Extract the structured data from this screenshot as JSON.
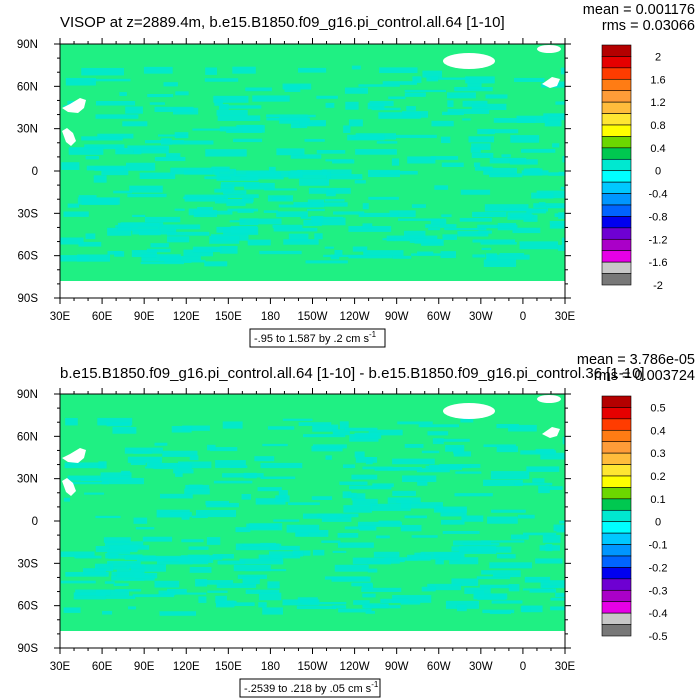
{
  "colors": {
    "ocean": "#1ff083",
    "anomaly": "#00e8d0",
    "land": "#ffffff",
    "frame": "#000000"
  },
  "chart_data": [
    {
      "type": "heatmap",
      "title": "VISOP at z=2889.4m, b.e15.B1850.f09_g16.pi_control.all.64 [1-10]",
      "stats": {
        "mean": "mean = 0.001176",
        "rms": "rms = 0.03066"
      },
      "x_ticks": [
        "30E",
        "60E",
        "90E",
        "120E",
        "150E",
        "180",
        "150W",
        "120W",
        "90W",
        "60W",
        "30W",
        "0",
        "30E"
      ],
      "y_ticks": [
        "90N",
        "60N",
        "30N",
        "0",
        "30S",
        "60S",
        "90S"
      ],
      "xlim": [
        30,
        390
      ],
      "ylim": [
        -90,
        90
      ],
      "colorbar": {
        "levels": [
          "2",
          "1.6",
          "1.2",
          "0.8",
          "0.4",
          "0",
          "-0.4",
          "-0.8",
          "-1.2",
          "-1.6",
          "-2"
        ],
        "colors": [
          "#b40000",
          "#e60000",
          "#ff3c00",
          "#ff7c14",
          "#ff9c38",
          "#ffbc3c",
          "#ffe632",
          "#ffff00",
          "#6cd700",
          "#00c850",
          "#00e8d0",
          "#00ffff",
          "#00c8ff",
          "#0096ff",
          "#0064ff",
          "#0000f0",
          "#6e00d2",
          "#aa00c8",
          "#e600e6",
          "#c8c8c8",
          "#787878"
        ]
      },
      "range_note": "-.95 to 1.587 by .2 cm s",
      "range_unit_exp": "-1"
    },
    {
      "type": "heatmap",
      "title": "b.e15.B1850.f09_g16.pi_control.all.64 [1-10] - b.e15.B1850.f09_g16.pi_control.36 [1-10]",
      "stats": {
        "mean": "mean = 3.786e-05",
        "rms": "rms = 0.003724"
      },
      "x_ticks": [
        "30E",
        "60E",
        "90E",
        "120E",
        "150E",
        "180",
        "150W",
        "120W",
        "90W",
        "60W",
        "30W",
        "0",
        "30E"
      ],
      "y_ticks": [
        "90N",
        "60N",
        "30N",
        "0",
        "30S",
        "60S",
        "90S"
      ],
      "xlim": [
        30,
        390
      ],
      "ylim": [
        -90,
        90
      ],
      "colorbar": {
        "levels": [
          "0.5",
          "0.4",
          "0.3",
          "0.2",
          "0.1",
          "0",
          "-0.1",
          "-0.2",
          "-0.3",
          "-0.4",
          "-0.5"
        ],
        "colors": [
          "#b40000",
          "#e60000",
          "#ff3c00",
          "#ff7c14",
          "#ff9c38",
          "#ffbc3c",
          "#ffe632",
          "#ffff00",
          "#6cd700",
          "#00c850",
          "#00e8d0",
          "#00ffff",
          "#00c8ff",
          "#0096ff",
          "#0064ff",
          "#0000f0",
          "#6e00d2",
          "#aa00c8",
          "#e600e6",
          "#c8c8c8",
          "#787878"
        ]
      },
      "range_note": "-.2539 to .218 by .05 cm s",
      "range_unit_exp": "-1"
    }
  ]
}
